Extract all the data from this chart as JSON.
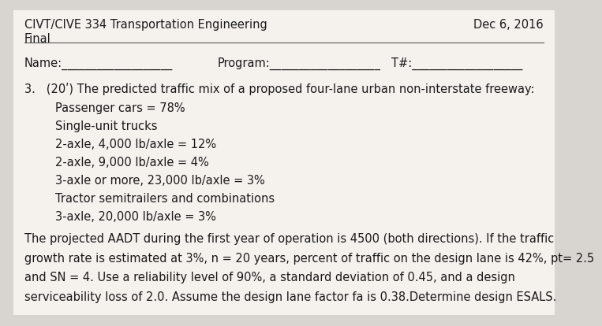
{
  "background_color": "#d8d4d0",
  "paper_color": "#f5f2ee",
  "header_line1": "CIVT/CIVE 334 Transportation Engineering",
  "header_line2": "Final",
  "date": "Dec 6, 2016",
  "name_label": "Name:___________________",
  "program_label": "Program:___________________",
  "t_label": "T#:___________________",
  "question_number": "3.",
  "question_intro": "(20ʹ) The predicted traffic mix of a proposed four-lane urban non-interstate freeway:",
  "bullet_lines": [
    "Passenger cars = 78%",
    "Single-unit trucks",
    "2-axle, 4,000 lb/axle = 12%",
    "2-axle, 9,000 lb/axle = 4%",
    "3-axle or more, 23,000 lb/axle = 3%",
    "Tractor semitrailers and combinations",
    "3-axle, 20,000 lb/axle = 3%"
  ],
  "para_lines": [
    "The projected AADT during the first year of operation is 4500 (both directions). If the traffic",
    "growth rate is estimated at 3%, n = 20 years, percent of traffic on the design lane is 42%, pt= 2.5",
    "and SN = 4. Use a reliability level of 90%, a standard deviation of 0.45, and a design",
    "serviceability loss of 2.0. Assume the design lane factor fa is 0.38.Determine design ESALS."
  ],
  "font_size_header": 10.5,
  "font_size_body": 10.5,
  "text_color": "#1a1a1a",
  "line_color": "#555555"
}
